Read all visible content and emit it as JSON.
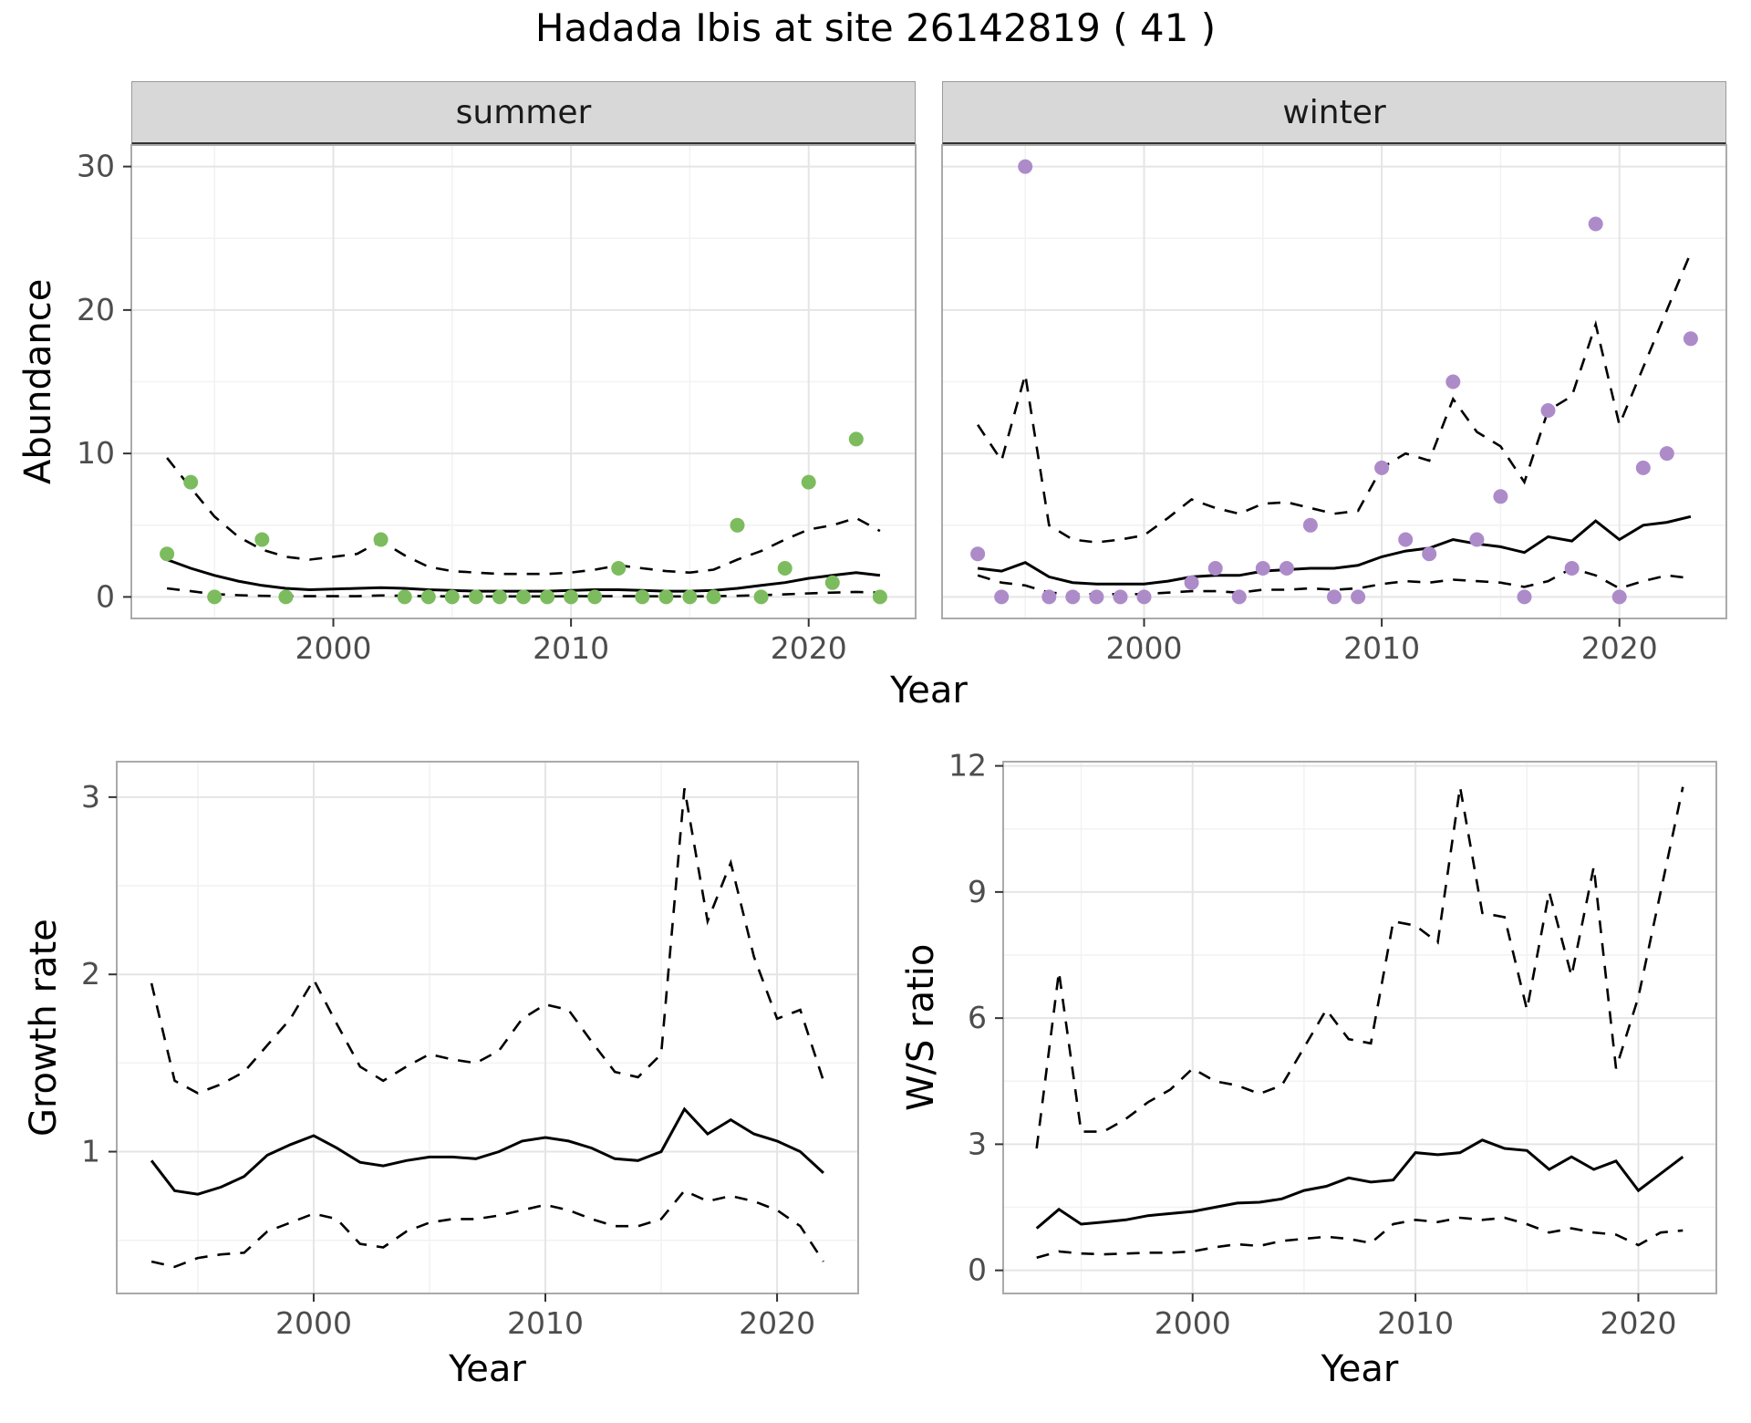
{
  "title": "Hadada Ibis at site 26142819 ( 41 )",
  "theme": {
    "panel_bg": "#ffffff",
    "grid_major": "#e5e5e5",
    "grid_minor": "#f2f2f2",
    "panel_border": "#aaaaaa",
    "line": "#000000",
    "axis_text": "#4d4d4d",
    "tick": "#333333",
    "strip_bg": "#d8d8d8",
    "strip_text": "#1a1a1a",
    "summer_point": "#7cbc5e",
    "winter_point": "#ad8bc9"
  },
  "chart_data": [
    {
      "id": "abundance_summer",
      "type": "scatter",
      "facet_label": "summer",
      "xlabel": "Year",
      "ylabel": "Abundance",
      "point_color": "#7cbc5e",
      "xlim": [
        1991.5,
        2024.5
      ],
      "ylim": [
        -1.5,
        31.5
      ],
      "xticks": [
        2000,
        2010,
        2020
      ],
      "yticks": [
        0,
        10,
        20,
        30
      ],
      "points_x": [
        1993,
        1994,
        1995,
        1997,
        1998,
        2002,
        2003,
        2004,
        2005,
        2006,
        2007,
        2008,
        2009,
        2010,
        2011,
        2012,
        2013,
        2014,
        2015,
        2016,
        2017,
        2018,
        2019,
        2020,
        2021,
        2022,
        2023
      ],
      "points_y": [
        3,
        8,
        0,
        4,
        0,
        4,
        0,
        0,
        0,
        0,
        0,
        0,
        0,
        0,
        0,
        2,
        0,
        0,
        0,
        0,
        5,
        0,
        2,
        8,
        1,
        11,
        0
      ],
      "line_x": [
        1993,
        1994,
        1995,
        1996,
        1997,
        1998,
        1999,
        2000,
        2001,
        2002,
        2003,
        2004,
        2005,
        2006,
        2007,
        2008,
        2009,
        2010,
        2011,
        2012,
        2013,
        2014,
        2015,
        2016,
        2017,
        2018,
        2019,
        2020,
        2021,
        2022,
        2023
      ],
      "fit": [
        2.6,
        2.0,
        1.5,
        1.1,
        0.8,
        0.6,
        0.5,
        0.55,
        0.6,
        0.65,
        0.6,
        0.5,
        0.45,
        0.4,
        0.4,
        0.4,
        0.4,
        0.45,
        0.5,
        0.5,
        0.45,
        0.4,
        0.4,
        0.45,
        0.6,
        0.8,
        1.0,
        1.3,
        1.5,
        1.7,
        1.5
      ],
      "upper": [
        9.7,
        7.6,
        5.6,
        4.2,
        3.3,
        2.8,
        2.6,
        2.8,
        3.0,
        3.9,
        2.9,
        2.1,
        1.8,
        1.7,
        1.6,
        1.6,
        1.6,
        1.7,
        1.9,
        2.2,
        2.0,
        1.8,
        1.7,
        1.9,
        2.6,
        3.2,
        4.0,
        4.7,
        5.0,
        5.5,
        4.6
      ],
      "lower": [
        0.6,
        0.4,
        0.2,
        0.12,
        0.08,
        0.05,
        0.05,
        0.05,
        0.05,
        0.1,
        0.08,
        0.05,
        0.04,
        0.04,
        0.04,
        0.04,
        0.04,
        0.05,
        0.05,
        0.06,
        0.05,
        0.04,
        0.04,
        0.05,
        0.08,
        0.12,
        0.18,
        0.25,
        0.3,
        0.35,
        0.3
      ]
    },
    {
      "id": "abundance_winter",
      "type": "scatter",
      "facet_label": "winter",
      "xlabel": "Year",
      "ylabel": "Abundance",
      "point_color": "#ad8bc9",
      "xlim": [
        1991.5,
        2024.5
      ],
      "ylim": [
        -1.5,
        31.5
      ],
      "xticks": [
        2000,
        2010,
        2020
      ],
      "yticks": [
        0,
        10,
        20,
        30
      ],
      "points_x": [
        1993,
        1994,
        1995,
        1996,
        1997,
        1998,
        1999,
        2000,
        2002,
        2003,
        2004,
        2005,
        2006,
        2007,
        2008,
        2009,
        2010,
        2011,
        2012,
        2013,
        2014,
        2015,
        2016,
        2017,
        2018,
        2019,
        2020,
        2021,
        2022,
        2023
      ],
      "points_y": [
        3,
        0,
        30,
        0,
        0,
        0,
        0,
        0,
        1,
        2,
        0,
        2,
        2,
        5,
        0,
        0,
        9,
        4,
        3,
        15,
        4,
        7,
        0,
        13,
        2,
        26,
        0,
        9,
        10,
        18
      ],
      "line_x": [
        1993,
        1994,
        1995,
        1996,
        1997,
        1998,
        1999,
        2000,
        2001,
        2002,
        2003,
        2004,
        2005,
        2006,
        2007,
        2008,
        2009,
        2010,
        2011,
        2012,
        2013,
        2014,
        2015,
        2016,
        2017,
        2018,
        2019,
        2020,
        2021,
        2022,
        2023
      ],
      "fit": [
        2.0,
        1.8,
        2.4,
        1.4,
        1.0,
        0.9,
        0.9,
        0.9,
        1.1,
        1.4,
        1.5,
        1.5,
        1.8,
        1.9,
        2.0,
        2.0,
        2.2,
        2.8,
        3.2,
        3.4,
        4.0,
        3.7,
        3.5,
        3.1,
        4.2,
        3.9,
        5.3,
        4.0,
        5.0,
        5.2,
        5.6
      ],
      "upper": [
        12.0,
        9.5,
        15.5,
        5.0,
        4.0,
        3.8,
        4.0,
        4.3,
        5.5,
        6.8,
        6.2,
        5.8,
        6.5,
        6.6,
        6.2,
        5.8,
        6.0,
        9.0,
        10.0,
        9.5,
        13.8,
        11.5,
        10.5,
        8.0,
        13.0,
        14.0,
        19.0,
        12.0,
        16.0,
        20.0,
        24.0
      ],
      "lower": [
        1.5,
        1.0,
        0.8,
        0.3,
        0.2,
        0.2,
        0.2,
        0.2,
        0.3,
        0.4,
        0.4,
        0.3,
        0.5,
        0.5,
        0.6,
        0.5,
        0.6,
        0.9,
        1.1,
        1.0,
        1.2,
        1.1,
        1.0,
        0.7,
        1.1,
        2.0,
        1.5,
        0.6,
        1.1,
        1.5,
        1.3
      ]
    },
    {
      "id": "growth_rate",
      "type": "line",
      "xlabel": "Year",
      "ylabel": "Growth rate",
      "xlim": [
        1991.5,
        2023.5
      ],
      "ylim": [
        0.2,
        3.2
      ],
      "xticks": [
        2000,
        2010,
        2020
      ],
      "yticks": [
        1,
        2,
        3
      ],
      "line_x": [
        1993,
        1994,
        1995,
        1996,
        1997,
        1998,
        1999,
        2000,
        2001,
        2002,
        2003,
        2004,
        2005,
        2006,
        2007,
        2008,
        2009,
        2010,
        2011,
        2012,
        2013,
        2014,
        2015,
        2016,
        2017,
        2018,
        2019,
        2020,
        2021,
        2022
      ],
      "fit": [
        0.95,
        0.78,
        0.76,
        0.8,
        0.86,
        0.98,
        1.04,
        1.09,
        1.02,
        0.94,
        0.92,
        0.95,
        0.97,
        0.97,
        0.96,
        1.0,
        1.06,
        1.08,
        1.06,
        1.02,
        0.96,
        0.95,
        1.0,
        1.24,
        1.1,
        1.18,
        1.1,
        1.06,
        1.0,
        0.88
      ],
      "upper": [
        1.95,
        1.4,
        1.33,
        1.38,
        1.45,
        1.6,
        1.75,
        1.97,
        1.72,
        1.48,
        1.4,
        1.48,
        1.55,
        1.52,
        1.5,
        1.57,
        1.75,
        1.83,
        1.8,
        1.62,
        1.45,
        1.42,
        1.55,
        3.05,
        2.3,
        2.63,
        2.1,
        1.75,
        1.8,
        1.4
      ],
      "lower": [
        0.38,
        0.35,
        0.4,
        0.42,
        0.43,
        0.55,
        0.6,
        0.65,
        0.62,
        0.48,
        0.46,
        0.55,
        0.6,
        0.62,
        0.62,
        0.64,
        0.67,
        0.7,
        0.67,
        0.62,
        0.58,
        0.58,
        0.62,
        0.78,
        0.72,
        0.75,
        0.72,
        0.67,
        0.58,
        0.38
      ]
    },
    {
      "id": "ws_ratio",
      "type": "line",
      "xlabel": "Year",
      "ylabel": "W/S ratio",
      "xlim": [
        1991.5,
        2023.5
      ],
      "ylim": [
        -0.55,
        12.1
      ],
      "xticks": [
        2000,
        2010,
        2020
      ],
      "yticks": [
        0,
        3,
        6,
        9,
        12
      ],
      "line_x": [
        1993,
        1994,
        1995,
        1996,
        1997,
        1998,
        1999,
        2000,
        2001,
        2002,
        2003,
        2004,
        2005,
        2006,
        2007,
        2008,
        2009,
        2010,
        2011,
        2012,
        2013,
        2014,
        2015,
        2016,
        2017,
        2018,
        2019,
        2020,
        2021,
        2022
      ],
      "fit": [
        1.0,
        1.45,
        1.1,
        1.15,
        1.2,
        1.3,
        1.35,
        1.4,
        1.5,
        1.6,
        1.62,
        1.7,
        1.9,
        2.0,
        2.2,
        2.1,
        2.15,
        2.8,
        2.75,
        2.8,
        3.1,
        2.9,
        2.85,
        2.4,
        2.7,
        2.4,
        2.6,
        1.9,
        2.3,
        2.7
      ],
      "upper": [
        2.9,
        7.1,
        3.3,
        3.3,
        3.6,
        4.0,
        4.3,
        4.8,
        4.5,
        4.4,
        4.2,
        4.4,
        5.3,
        6.2,
        5.5,
        5.4,
        8.3,
        8.2,
        7.8,
        11.5,
        8.5,
        8.4,
        6.2,
        9.0,
        7.0,
        9.6,
        4.8,
        6.5,
        9.0,
        11.5
      ],
      "lower": [
        0.3,
        0.45,
        0.4,
        0.38,
        0.4,
        0.42,
        0.42,
        0.45,
        0.55,
        0.62,
        0.58,
        0.7,
        0.75,
        0.8,
        0.75,
        0.65,
        1.1,
        1.2,
        1.15,
        1.25,
        1.2,
        1.25,
        1.1,
        0.9,
        1.0,
        0.9,
        0.85,
        0.6,
        0.9,
        0.95
      ]
    }
  ]
}
